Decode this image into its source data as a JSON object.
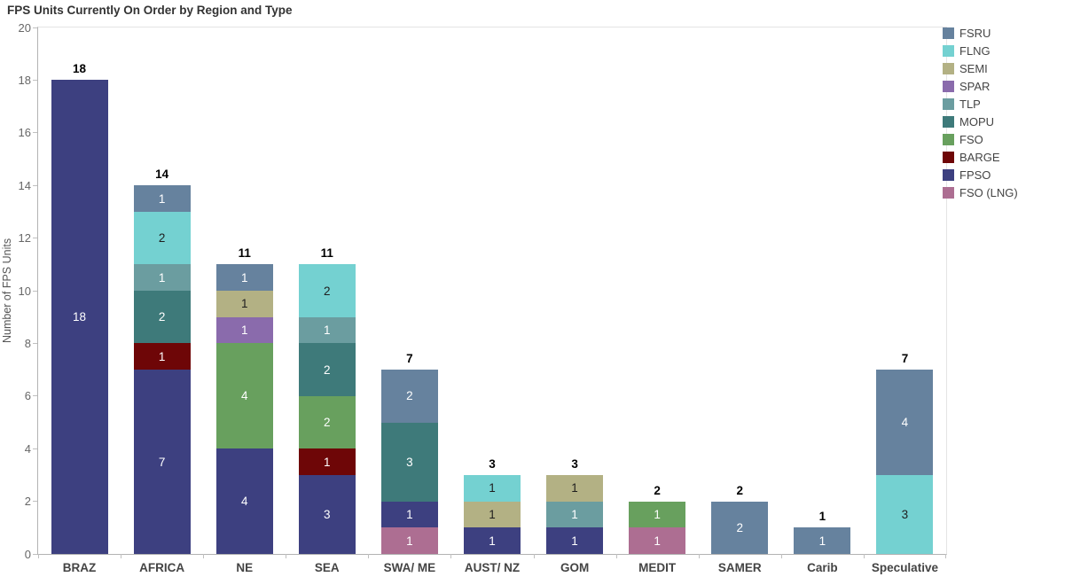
{
  "title": "FPS Units Currently On Order by Region and Type",
  "y_axis": {
    "label": "Number of FPS Units",
    "ticks": [
      0,
      2,
      4,
      6,
      8,
      10,
      12,
      14,
      16,
      18,
      20
    ]
  },
  "chart_data": {
    "type": "bar",
    "stacked": true,
    "title": "FPS Units Currently On Order by Region and Type",
    "xlabel": "",
    "ylabel": "Number of FPS Units",
    "ylim": [
      0,
      20
    ],
    "ytick_interval": 2,
    "grid": false,
    "legend_position": "top-right",
    "legend_labels": [
      "FSRU",
      "FLNG",
      "SEMI",
      "SPAR",
      "TLP",
      "MOPU",
      "FSO",
      "BARGE",
      "FPSO",
      "FSO (LNG)"
    ],
    "categories": [
      "BRAZ",
      "AFRICA",
      "NE",
      "SEA",
      "SWA/ ME",
      "AUST/ NZ",
      "GOM",
      "MEDIT",
      "SAMER",
      "Carib",
      "Speculative"
    ],
    "totals": [
      18,
      14,
      11,
      11,
      7,
      3,
      3,
      2,
      2,
      1,
      7
    ],
    "stack_order": "bottom_to_top",
    "series": [
      {
        "name": "FSO (LNG)",
        "color": "#ad6e92",
        "values": [
          0,
          0,
          0,
          0,
          1,
          0,
          0,
          1,
          0,
          0,
          0
        ]
      },
      {
        "name": "FPSO",
        "color": "#3d4080",
        "values": [
          18,
          7,
          4,
          3,
          1,
          1,
          1,
          0,
          0,
          0,
          0
        ]
      },
      {
        "name": "BARGE",
        "color": "#6e0607",
        "values": [
          0,
          1,
          0,
          1,
          0,
          0,
          0,
          0,
          0,
          0,
          0
        ]
      },
      {
        "name": "FSO",
        "color": "#68a05e",
        "values": [
          0,
          0,
          4,
          2,
          0,
          0,
          0,
          1,
          0,
          0,
          0
        ]
      },
      {
        "name": "MOPU",
        "color": "#3e7a7a",
        "values": [
          0,
          2,
          0,
          2,
          3,
          0,
          0,
          0,
          0,
          0,
          0
        ]
      },
      {
        "name": "TLP",
        "color": "#6b9da0",
        "values": [
          0,
          1,
          0,
          1,
          0,
          0,
          1,
          0,
          0,
          0,
          0
        ]
      },
      {
        "name": "SPAR",
        "color": "#8a6bac",
        "values": [
          0,
          0,
          1,
          0,
          0,
          0,
          0,
          0,
          0,
          0,
          0
        ]
      },
      {
        "name": "SEMI",
        "color": "#b3b184",
        "values": [
          0,
          0,
          1,
          0,
          0,
          1,
          1,
          0,
          0,
          0,
          0
        ]
      },
      {
        "name": "FLNG",
        "color": "#74d1d1",
        "values": [
          0,
          2,
          0,
          2,
          0,
          1,
          0,
          0,
          0,
          0,
          3
        ]
      },
      {
        "name": "FSRU",
        "color": "#66829e",
        "values": [
          0,
          1,
          1,
          0,
          2,
          0,
          0,
          0,
          2,
          1,
          4
        ]
      }
    ],
    "dark_label_series": [
      "FLNG",
      "SEMI"
    ]
  }
}
